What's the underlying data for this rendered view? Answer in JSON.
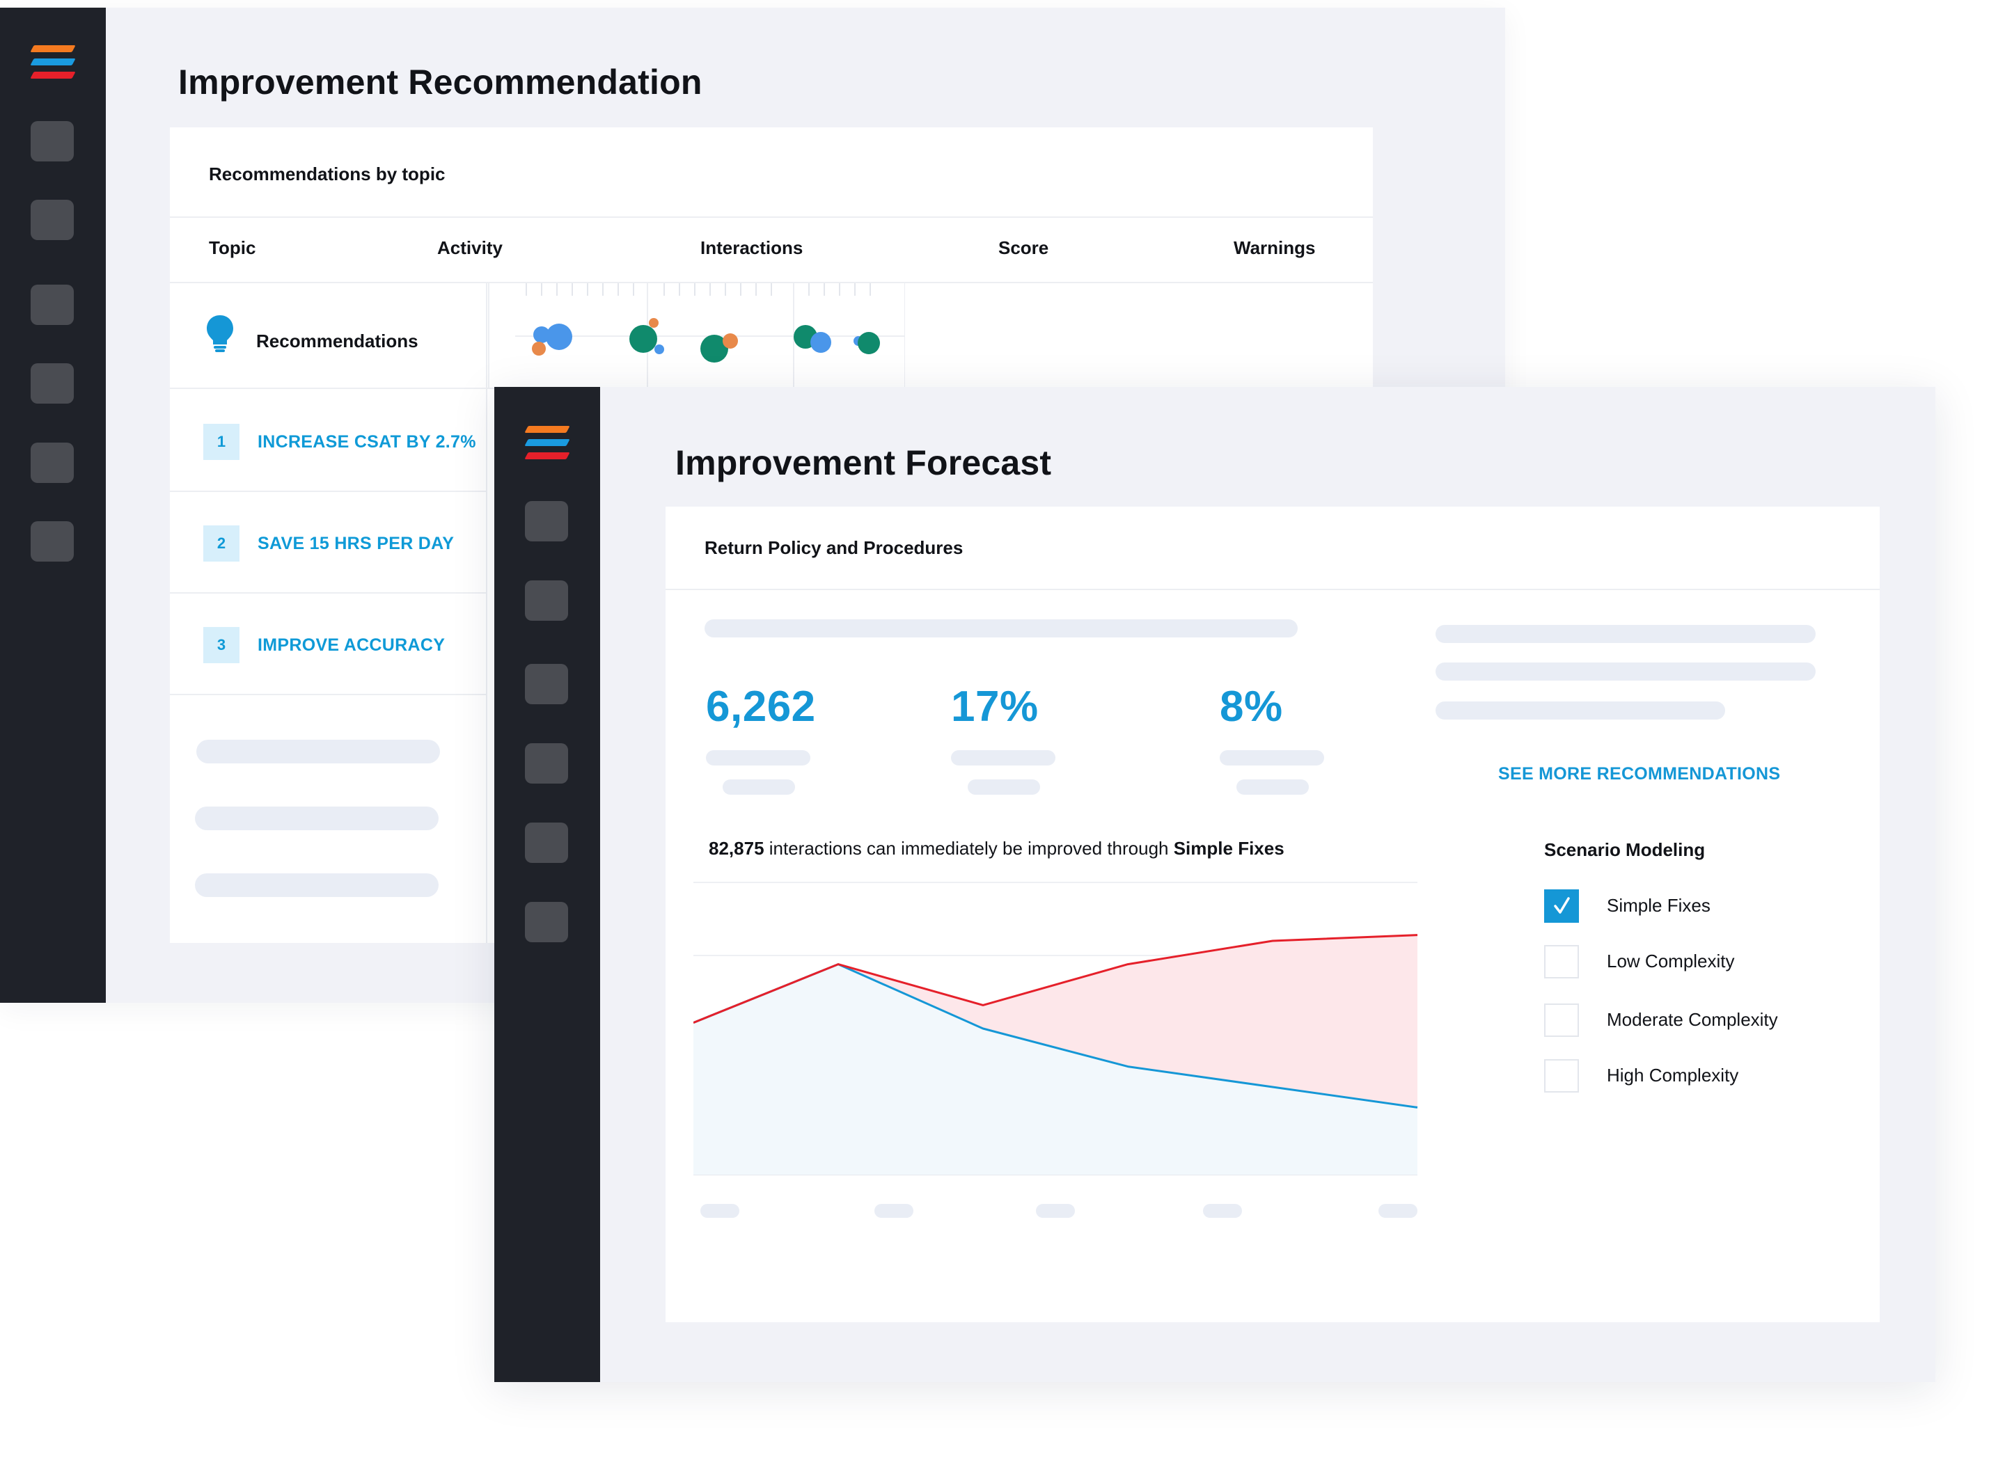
{
  "recommendation_window": {
    "title": "Improvement Recommendation",
    "section_title": "Recommendations by topic",
    "columns": [
      "Topic",
      "Activity",
      "Interactions",
      "Score",
      "Warnings"
    ],
    "topic_row_label": "Recommendations",
    "topic_icon": "lightbulb-icon",
    "items": [
      {
        "number": "1",
        "label": "INCREASE CSAT BY 2.7%"
      },
      {
        "number": "2",
        "label": "SAVE 15 HRS PER DAY"
      },
      {
        "number": "3",
        "label": "IMPROVE ACCURACY"
      }
    ]
  },
  "forecast_window": {
    "title": "Improvement Forecast",
    "section_title": "Return Policy and Procedures",
    "stats": [
      {
        "value": "6,262"
      },
      {
        "value": "17%"
      },
      {
        "value": "8%"
      }
    ],
    "see_more_label": "SEE MORE RECOMMENDATIONS",
    "summary": {
      "count": "82,875",
      "middle": " interactions can immediately be improved through ",
      "emphasis": "Simple Fixes"
    },
    "scenario": {
      "title": "Scenario Modeling",
      "options": [
        {
          "label": "Simple Fixes",
          "checked": true
        },
        {
          "label": "Low Complexity",
          "checked": false
        },
        {
          "label": "Moderate Complexity",
          "checked": false
        },
        {
          "label": "High Complexity",
          "checked": false
        }
      ]
    }
  },
  "colors": {
    "accent_blue": "#1597d6",
    "accent_red": "#e5202a",
    "sidebar": "#1f2229",
    "logo_orange": "#f47a20"
  },
  "chart_data": {
    "type": "area",
    "title": "",
    "xlabel": "",
    "ylabel": "",
    "x": [
      1,
      2,
      3,
      4,
      5,
      6
    ],
    "ylim": [
      0,
      100
    ],
    "grid": true,
    "legend": "bottom",
    "series": [
      {
        "color": "#1597d6",
        "values": [
          52,
          72,
          50,
          37,
          30,
          23
        ]
      },
      {
        "color": "#e5202a",
        "values": [
          52,
          72,
          58,
          72,
          80,
          82
        ]
      }
    ]
  }
}
